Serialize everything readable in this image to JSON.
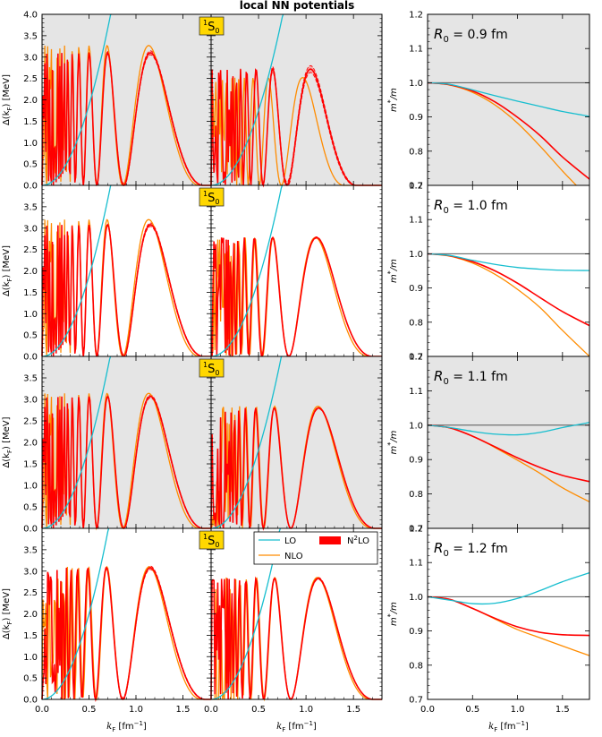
{
  "title": "local NN potentials",
  "channel": "1S0",
  "channel_sup": "1",
  "channel_base": "S",
  "channel_sub": "0",
  "colors": {
    "LO": "#17becf",
    "NLO": "#ff8c00",
    "N2LO": "#ff0000",
    "band": "#f4a6a6",
    "panel_bg": "#e5e5e5",
    "badge": "#ffd700",
    "ref_line": "#555555"
  },
  "legend": [
    {
      "key": "LO",
      "label": "LO"
    },
    {
      "key": "NLO",
      "label": "NLO"
    },
    {
      "key": "N2LO",
      "label": "N2LO",
      "base": "N",
      "sup": "2",
      "tail": "LO"
    }
  ],
  "xaxis": {
    "label": "k",
    "label_sub": "F",
    "label_unit": "[fm",
    "label_exp": "−1",
    "label_close": "]",
    "range": [
      0,
      1.8
    ],
    "ticks": [
      "0.0",
      "0.5",
      "1.0",
      "1.5"
    ],
    "tick_values": [
      0,
      0.5,
      1.0,
      1.5
    ]
  },
  "gap_axis": {
    "label": "Δ(k",
    "label_sub": "F",
    "label_tail": ") [MeV]",
    "range": [
      0,
      4.0
    ],
    "ticks_top": [
      "0.0",
      "0.5",
      "1.0",
      "1.5",
      "2.0",
      "2.5",
      "3.0",
      "3.5",
      "4.0"
    ],
    "ticks": [
      "0.0",
      "0.5",
      "1.0",
      "1.5",
      "2.0",
      "2.5",
      "3.0",
      "3.5"
    ],
    "tick_values": [
      0,
      0.5,
      1.0,
      1.5,
      2.0,
      2.5,
      3.0,
      3.5,
      4.0
    ]
  },
  "mass_axis": {
    "label": "m",
    "label_sup": "*",
    "label_tail": "/m",
    "range": [
      0.7,
      1.2
    ],
    "ticks": [
      "0.7",
      "0.8",
      "0.9",
      "1.0",
      "1.1",
      "1.2"
    ],
    "tick_values": [
      0.7,
      0.8,
      0.9,
      1.0,
      1.1,
      1.2
    ]
  },
  "rows": [
    {
      "R0_label": "R",
      "R0_sub": "0",
      "R0_value": " = 0.9 fm",
      "shaded": true,
      "left": {
        "LO_coef": 7.5,
        "NLO": {
          "peak": 3.27,
          "center": 0.86,
          "end": 1.68
        },
        "N2LO": {
          "peak": 3.1,
          "center": 0.87,
          "end": 1.72
        },
        "band": 0.08
      },
      "right": {
        "LO_coef": 7.0,
        "NLO": {
          "peak": 2.52,
          "center": 0.74,
          "end": 1.4
        },
        "N2LO": {
          "peak": 2.72,
          "center": 0.8,
          "end": 1.53
        },
        "band": 0.14
      },
      "mass": {
        "LO": [
          1.0,
          0.995,
          0.979,
          0.962,
          0.946,
          0.931,
          0.916,
          0.902
        ],
        "NLO": [
          1.0,
          0.993,
          0.972,
          0.935,
          0.882,
          0.815,
          0.742,
          0.66
        ],
        "N2LO": [
          1.0,
          0.994,
          0.976,
          0.944,
          0.899,
          0.846,
          0.783,
          0.718
        ]
      }
    },
    {
      "R0_label": "R",
      "R0_sub": "0",
      "R0_value": " = 1.0 fm",
      "shaded": false,
      "left": {
        "LO_coef": 7.5,
        "NLO": {
          "peak": 3.2,
          "center": 0.86,
          "end": 1.68
        },
        "N2LO": {
          "peak": 3.08,
          "center": 0.87,
          "end": 1.72
        },
        "band": 0.07
      },
      "right": {
        "LO_coef": 7.2,
        "NLO": {
          "peak": 2.78,
          "center": 0.82,
          "end": 1.66
        },
        "N2LO": {
          "peak": 2.78,
          "center": 0.82,
          "end": 1.7
        },
        "band": 0.03
      },
      "mass": {
        "LO": [
          1.0,
          0.995,
          0.981,
          0.969,
          0.96,
          0.955,
          0.952,
          0.951
        ],
        "NLO": [
          1.0,
          0.993,
          0.973,
          0.94,
          0.896,
          0.843,
          0.776,
          0.7
        ],
        "N2LO": [
          1.0,
          0.994,
          0.977,
          0.95,
          0.914,
          0.872,
          0.831,
          0.79
        ]
      }
    },
    {
      "R0_label": "R",
      "R0_sub": "0",
      "R0_value": " = 1.1 fm",
      "shaded": true,
      "left": {
        "LO_coef": 7.6,
        "NLO": {
          "peak": 3.14,
          "center": 0.86,
          "end": 1.68
        },
        "N2LO": {
          "peak": 3.07,
          "center": 0.87,
          "end": 1.72
        },
        "band": 0.06
      },
      "right": {
        "LO_coef": 7.3,
        "NLO": {
          "peak": 2.84,
          "center": 0.84,
          "end": 1.7
        },
        "N2LO": {
          "peak": 2.8,
          "center": 0.84,
          "end": 1.73
        },
        "band": 0.03
      },
      "mass": {
        "LO": [
          1.0,
          0.993,
          0.982,
          0.974,
          0.972,
          0.979,
          0.993,
          1.008
        ],
        "NLO": [
          1.0,
          0.992,
          0.968,
          0.935,
          0.898,
          0.86,
          0.818,
          0.777
        ],
        "N2LO": [
          1.0,
          0.992,
          0.968,
          0.937,
          0.905,
          0.877,
          0.854,
          0.836
        ]
      }
    },
    {
      "R0_label": "R",
      "R0_sub": "0",
      "R0_value": " = 1.2 fm",
      "shaded": false,
      "left": {
        "LO_coef": 8.0,
        "NLO": {
          "peak": 3.1,
          "center": 0.86,
          "end": 1.7
        },
        "N2LO": {
          "peak": 3.08,
          "center": 0.86,
          "end": 1.74
        },
        "band": 0.07
      },
      "right": {
        "LO_coef": 7.6,
        "NLO": {
          "peak": 2.85,
          "center": 0.84,
          "end": 1.68
        },
        "N2LO": {
          "peak": 2.83,
          "center": 0.84,
          "end": 1.71
        },
        "band": 0.04
      },
      "mass": {
        "LO": [
          1.0,
          0.99,
          0.98,
          0.981,
          0.995,
          1.018,
          1.044,
          1.07
        ],
        "NLO": [
          1.0,
          0.992,
          0.966,
          0.935,
          0.904,
          0.88,
          0.856,
          0.828
        ],
        "N2LO": [
          1.0,
          0.992,
          0.966,
          0.937,
          0.912,
          0.896,
          0.889,
          0.887
        ]
      }
    }
  ],
  "chart_data": {
    "type": "line",
    "title": "local NN potentials",
    "xlabel": "kF [fm^-1]",
    "xlim": [
      0,
      1.8
    ],
    "panels": [
      {
        "column": "pairing gap (left)",
        "ylabel": "Δ(kF) [MeV]",
        "ylim": [
          0,
          4.0
        ],
        "series": [
          "LO",
          "NLO",
          "N2LO"
        ]
      },
      {
        "column": "pairing gap (right)",
        "ylabel": "Δ(kF) [MeV]",
        "ylim": [
          0,
          4.0
        ],
        "series": [
          "LO",
          "NLO",
          "N2LO"
        ]
      },
      {
        "column": "effective mass",
        "ylabel": "m*/m",
        "ylim": [
          0.7,
          1.2
        ],
        "x": [
          0,
          0.25,
          0.5,
          0.75,
          1.0,
          1.25,
          1.5,
          1.8
        ],
        "series": [
          "LO",
          "NLO",
          "N2LO"
        ]
      }
    ],
    "rows_R0_fm": [
      0.9,
      1.0,
      1.1,
      1.2
    ],
    "legend": [
      "LO",
      "NLO",
      "N2LO"
    ]
  }
}
